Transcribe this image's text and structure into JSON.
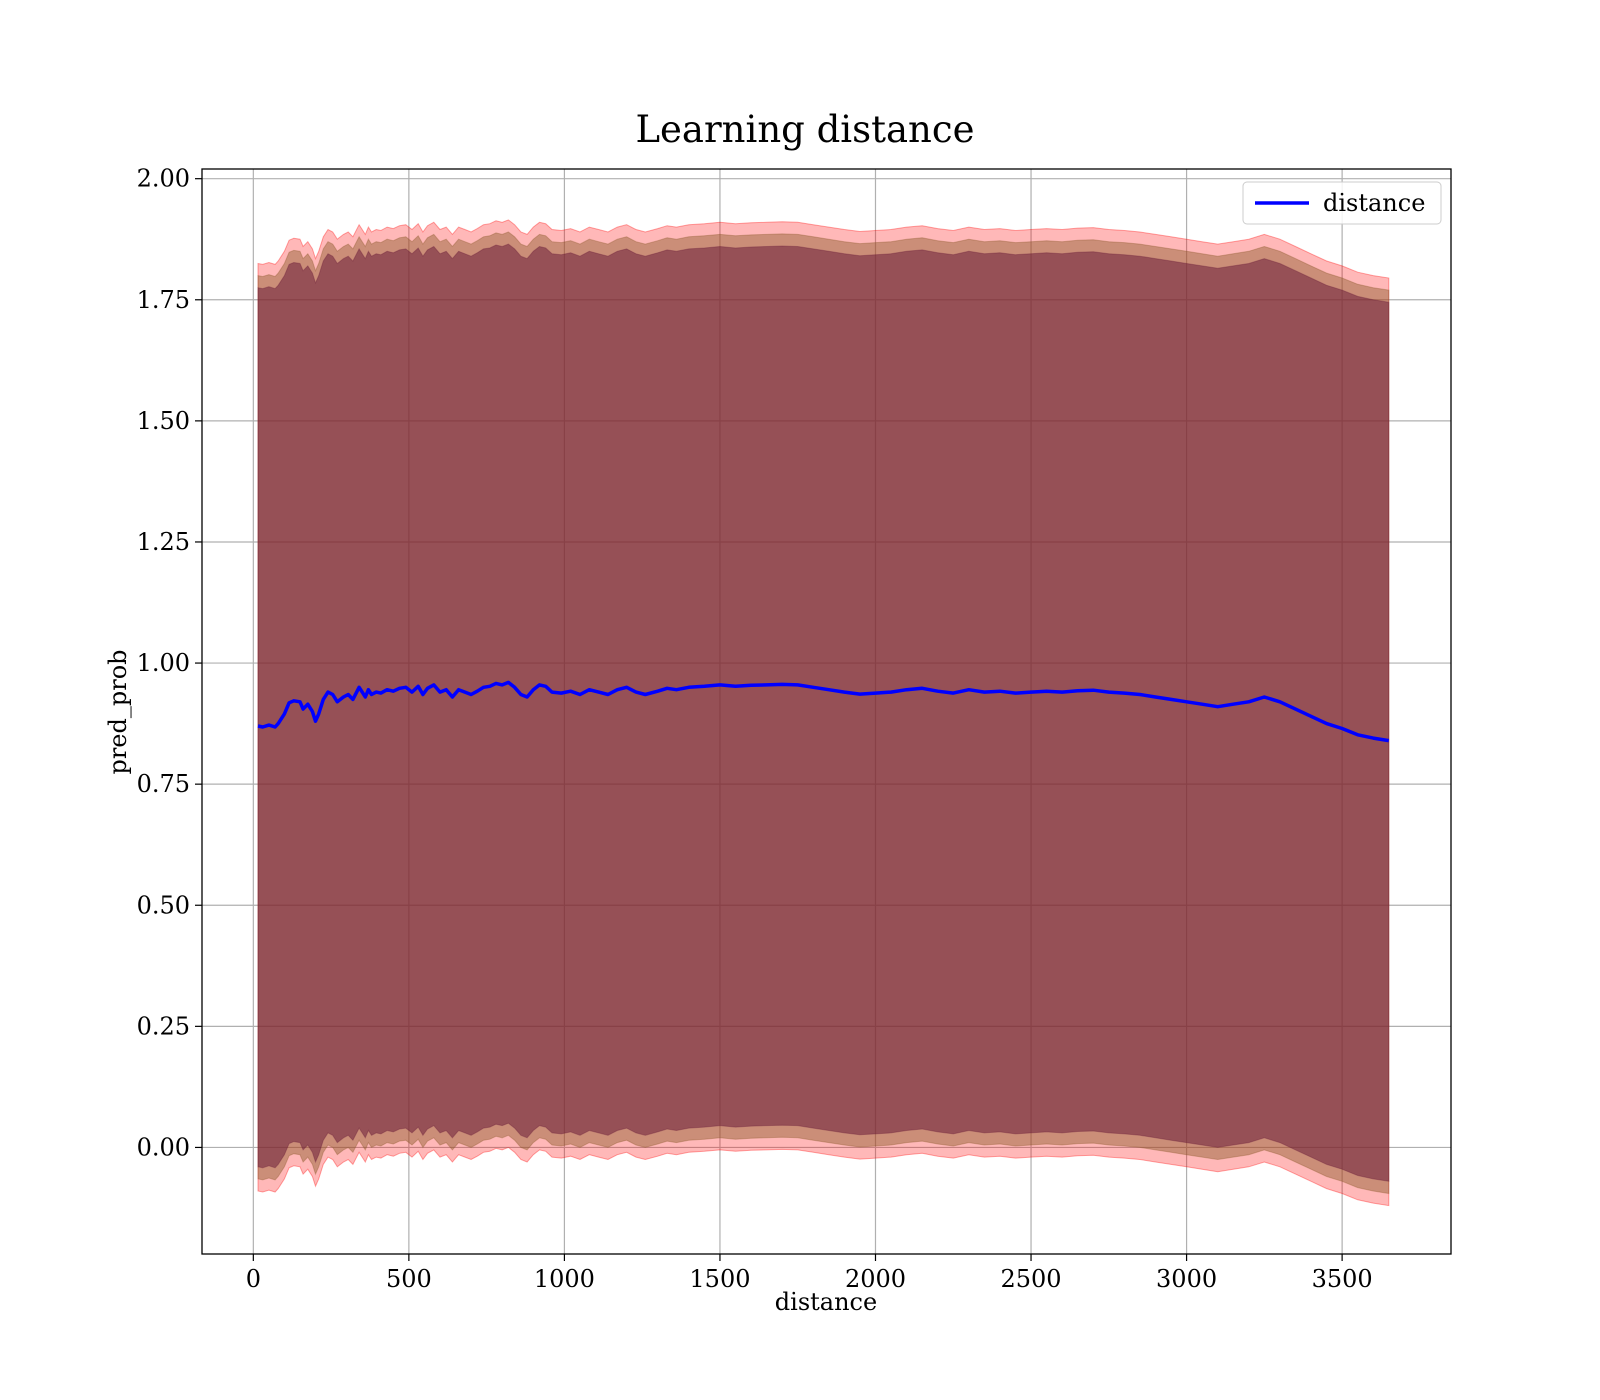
{
  "chart_data": {
    "type": "line",
    "title": "Learning distance",
    "xlabel": "distance",
    "ylabel": "pred_prob",
    "xlim": [
      -165,
      3850
    ],
    "ylim": [
      -0.22,
      2.02
    ],
    "x_ticks": [
      0,
      500,
      1000,
      1500,
      2000,
      2500,
      3000,
      3500
    ],
    "x_tick_labels": [
      "0",
      "500",
      "1000",
      "1500",
      "2000",
      "2500",
      "3000",
      "3500"
    ],
    "y_ticks": [
      0.0,
      0.25,
      0.5,
      0.75,
      1.0,
      1.25,
      1.5,
      1.75,
      2.0
    ],
    "y_tick_labels": [
      "0.00",
      "0.25",
      "0.50",
      "0.75",
      "1.00",
      "1.25",
      "1.50",
      "1.75",
      "2.00"
    ],
    "grid": true,
    "legend": {
      "position": "top-right",
      "entries": [
        "distance"
      ]
    },
    "series": [
      {
        "name": "distance",
        "color": "#0000ff",
        "x": [
          15,
          30,
          50,
          70,
          80,
          100,
          115,
          130,
          150,
          160,
          175,
          190,
          200,
          210,
          225,
          240,
          255,
          270,
          290,
          305,
          320,
          340,
          350,
          360,
          370,
          380,
          395,
          410,
          430,
          450,
          470,
          490,
          510,
          530,
          545,
          560,
          580,
          600,
          620,
          640,
          660,
          680,
          700,
          720,
          740,
          760,
          780,
          800,
          820,
          840,
          860,
          880,
          900,
          920,
          940,
          960,
          990,
          1020,
          1050,
          1080,
          1110,
          1140,
          1170,
          1200,
          1230,
          1260,
          1300,
          1330,
          1360,
          1400,
          1450,
          1500,
          1550,
          1600,
          1650,
          1700,
          1750,
          1800,
          1850,
          1900,
          1950,
          2000,
          2050,
          2100,
          2150,
          2200,
          2250,
          2300,
          2350,
          2400,
          2450,
          2500,
          2550,
          2600,
          2650,
          2700,
          2750,
          2800,
          2850,
          2900,
          2950,
          3000,
          3050,
          3100,
          3150,
          3200,
          3250,
          3300,
          3350,
          3400,
          3450,
          3500,
          3550,
          3600,
          3650
        ],
        "y": [
          0.87,
          0.868,
          0.872,
          0.868,
          0.875,
          0.895,
          0.918,
          0.922,
          0.92,
          0.905,
          0.915,
          0.9,
          0.88,
          0.895,
          0.925,
          0.94,
          0.935,
          0.92,
          0.93,
          0.935,
          0.925,
          0.95,
          0.94,
          0.93,
          0.945,
          0.935,
          0.94,
          0.938,
          0.945,
          0.942,
          0.948,
          0.95,
          0.94,
          0.952,
          0.935,
          0.948,
          0.955,
          0.94,
          0.945,
          0.93,
          0.945,
          0.94,
          0.935,
          0.942,
          0.95,
          0.952,
          0.958,
          0.955,
          0.96,
          0.95,
          0.935,
          0.93,
          0.945,
          0.955,
          0.952,
          0.94,
          0.938,
          0.942,
          0.935,
          0.945,
          0.94,
          0.935,
          0.945,
          0.95,
          0.94,
          0.935,
          0.942,
          0.948,
          0.945,
          0.95,
          0.952,
          0.955,
          0.952,
          0.954,
          0.955,
          0.956,
          0.955,
          0.95,
          0.945,
          0.94,
          0.936,
          0.938,
          0.94,
          0.945,
          0.948,
          0.942,
          0.938,
          0.945,
          0.94,
          0.942,
          0.938,
          0.94,
          0.942,
          0.94,
          0.943,
          0.944,
          0.94,
          0.938,
          0.935,
          0.93,
          0.925,
          0.92,
          0.915,
          0.91,
          0.915,
          0.92,
          0.93,
          0.92,
          0.905,
          0.89,
          0.875,
          0.865,
          0.852,
          0.845,
          0.84
        ]
      }
    ],
    "bands": [
      {
        "color": "#ff0000",
        "opacity": 0.28,
        "lower_offset": -0.96,
        "upper_offset": 0.955
      },
      {
        "color": "#8b5a2b",
        "opacity": 0.45,
        "lower_offset": -0.935,
        "upper_offset": 0.93
      },
      {
        "color": "#6b1e3a",
        "opacity": 0.55,
        "lower_offset": -0.91,
        "upper_offset": 0.905
      }
    ]
  }
}
